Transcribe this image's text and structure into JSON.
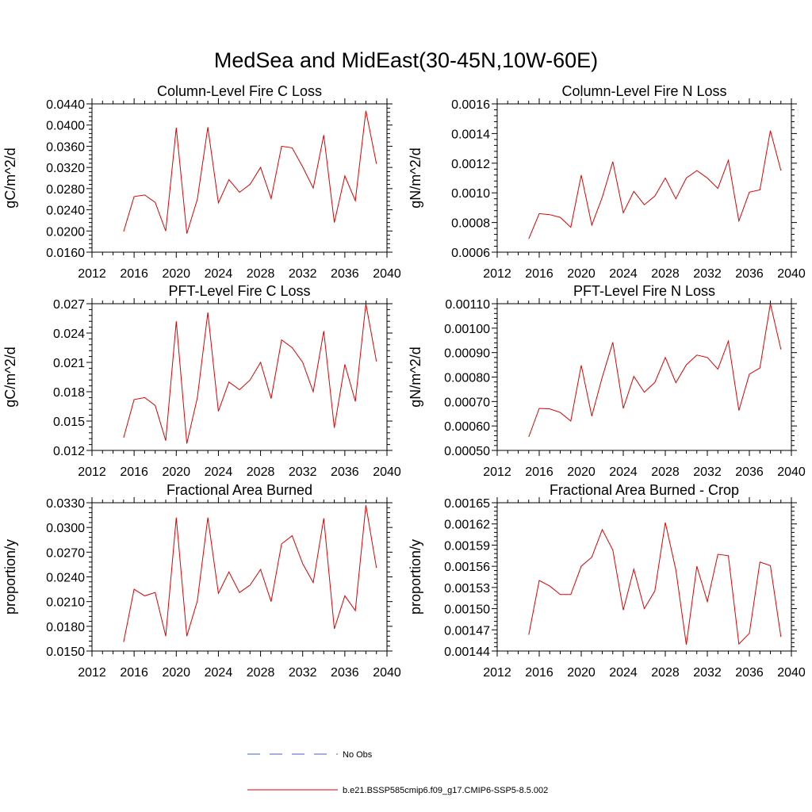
{
  "figure": {
    "title": "MedSea and MidEast(30-45N,10W-60E)"
  },
  "legend": {
    "placement": "bottom-center",
    "entries": [
      {
        "label": "No Obs",
        "color": "#4a5fc4",
        "style": "dashed"
      },
      {
        "label": "b.e21.BSSP585cmip6.f09_g17.CMIP6-SSP5-8.5.002",
        "color": "#e00000",
        "style": "solid"
      }
    ]
  },
  "chart_data": [
    {
      "type": "line",
      "title": "Column-Level Fire C Loss",
      "ylabel": "gC/m^2/d",
      "xlabel": "",
      "xlim": [
        2012,
        2040
      ],
      "xticks": [
        "2012",
        "2016",
        "2020",
        "2024",
        "2028",
        "2032",
        "2036",
        "2040"
      ],
      "ylim": [
        0.016,
        0.044
      ],
      "yticks": [
        "0.0160",
        "0.0200",
        "0.0240",
        "0.0280",
        "0.0320",
        "0.0360",
        "0.0400",
        "0.0440"
      ],
      "x": [
        2015,
        2016,
        2017,
        2018,
        2019,
        2020,
        2021,
        2022,
        2023,
        2024,
        2025,
        2026,
        2027,
        2028,
        2029,
        2030,
        2031,
        2032,
        2033,
        2034,
        2035,
        2036,
        2037,
        2038,
        2039
      ],
      "series": [
        {
          "color": "#e00000",
          "values": [
            0.0199,
            0.0265,
            0.0268,
            0.0254,
            0.02,
            0.0395,
            0.0195,
            0.026,
            0.0396,
            0.0253,
            0.0297,
            0.0273,
            0.0288,
            0.032,
            0.0261,
            0.036,
            0.0357,
            0.0321,
            0.0281,
            0.0381,
            0.0216,
            0.0304,
            0.0257,
            0.0427,
            0.0327
          ]
        }
      ]
    },
    {
      "type": "line",
      "title": "Column-Level Fire N Loss",
      "ylabel": "gN/m^2/d",
      "xlabel": "",
      "xlim": [
        2012,
        2040
      ],
      "xticks": [
        "2012",
        "2016",
        "2020",
        "2024",
        "2028",
        "2032",
        "2036",
        "2040"
      ],
      "ylim": [
        0.0006,
        0.0016
      ],
      "yticks": [
        "0.0006",
        "0.0008",
        "0.0010",
        "0.0012",
        "0.0014",
        "0.0016"
      ],
      "x": [
        2015,
        2016,
        2017,
        2018,
        2019,
        2020,
        2021,
        2022,
        2023,
        2024,
        2025,
        2026,
        2027,
        2028,
        2029,
        2030,
        2031,
        2032,
        2033,
        2034,
        2035,
        2036,
        2037,
        2038,
        2039
      ],
      "series": [
        {
          "color": "#e00000",
          "values": [
            0.00069,
            0.00086,
            0.000853,
            0.000835,
            0.000768,
            0.00112,
            0.000783,
            0.00097,
            0.00121,
            0.000865,
            0.00101,
            0.00092,
            0.000978,
            0.0011,
            0.00096,
            0.0011,
            0.00115,
            0.0011,
            0.00103,
            0.00122,
            0.00081,
            0.001005,
            0.00102,
            0.00142,
            0.00115
          ]
        }
      ]
    },
    {
      "type": "line",
      "title": "PFT-Level Fire C Loss",
      "ylabel": "gC/m^2/d",
      "xlabel": "",
      "xlim": [
        2012,
        2040
      ],
      "xticks": [
        "2012",
        "2016",
        "2020",
        "2024",
        "2028",
        "2032",
        "2036",
        "2040"
      ],
      "ylim": [
        0.012,
        0.027
      ],
      "yticks": [
        "0.012",
        "0.015",
        "0.018",
        "0.021",
        "0.024",
        "0.027"
      ],
      "x": [
        2015,
        2016,
        2017,
        2018,
        2019,
        2020,
        2021,
        2022,
        2023,
        2024,
        2025,
        2026,
        2027,
        2028,
        2029,
        2030,
        2031,
        2032,
        2033,
        2034,
        2035,
        2036,
        2037,
        2038,
        2039
      ],
      "series": [
        {
          "color": "#e00000",
          "values": [
            0.0133,
            0.0172,
            0.0174,
            0.0166,
            0.013,
            0.0252,
            0.0127,
            0.0174,
            0.0261,
            0.016,
            0.019,
            0.0182,
            0.0192,
            0.021,
            0.0173,
            0.0233,
            0.0225,
            0.021,
            0.018,
            0.0242,
            0.0143,
            0.0208,
            0.017,
            0.027,
            0.0211
          ]
        }
      ]
    },
    {
      "type": "line",
      "title": "PFT-Level Fire N Loss",
      "ylabel": "gN/m^2/d",
      "xlabel": "",
      "xlim": [
        2012,
        2040
      ],
      "xticks": [
        "2012",
        "2016",
        "2020",
        "2024",
        "2028",
        "2032",
        "2036",
        "2040"
      ],
      "ylim": [
        0.0005,
        0.0011
      ],
      "yticks": [
        "0.00050",
        "0.00060",
        "0.00070",
        "0.00080",
        "0.00090",
        "0.00100",
        "0.00110"
      ],
      "x": [
        2015,
        2016,
        2017,
        2018,
        2019,
        2020,
        2021,
        2022,
        2023,
        2024,
        2025,
        2026,
        2027,
        2028,
        2029,
        2030,
        2031,
        2032,
        2033,
        2034,
        2035,
        2036,
        2037,
        2038,
        2039
      ],
      "series": [
        {
          "color": "#e00000",
          "values": [
            0.000555,
            0.000672,
            0.00067,
            0.000655,
            0.00062,
            0.000848,
            0.00064,
            0.0008,
            0.000942,
            0.000672,
            0.000803,
            0.000738,
            0.000778,
            0.00088,
            0.000777,
            0.00085,
            0.00089,
            0.00088,
            0.000832,
            0.000947,
            0.000663,
            0.000812,
            0.000837,
            0.0011,
            0.000913
          ]
        }
      ]
    },
    {
      "type": "line",
      "title": "Fractional Area Burned",
      "ylabel": "proportion/y",
      "xlabel": "",
      "xlim": [
        2012,
        2040
      ],
      "xticks": [
        "2012",
        "2016",
        "2020",
        "2024",
        "2028",
        "2032",
        "2036",
        "2040"
      ],
      "ylim": [
        0.015,
        0.033
      ],
      "yticks": [
        "0.0150",
        "0.0180",
        "0.0210",
        "0.0240",
        "0.0270",
        "0.0300",
        "0.0330"
      ],
      "x": [
        2015,
        2016,
        2017,
        2018,
        2019,
        2020,
        2021,
        2022,
        2023,
        2024,
        2025,
        2026,
        2027,
        2028,
        2029,
        2030,
        2031,
        2032,
        2033,
        2034,
        2035,
        2036,
        2037,
        2038,
        2039
      ],
      "series": [
        {
          "color": "#e00000",
          "values": [
            0.0161,
            0.0225,
            0.0217,
            0.0221,
            0.0168,
            0.0312,
            0.0168,
            0.0211,
            0.0312,
            0.022,
            0.0246,
            0.0221,
            0.023,
            0.0249,
            0.021,
            0.028,
            0.029,
            0.0256,
            0.0233,
            0.0311,
            0.0177,
            0.0217,
            0.0199,
            0.0327,
            0.0251
          ]
        }
      ]
    },
    {
      "type": "line",
      "title": "Fractional Area Burned - Crop",
      "ylabel": "proportion/y",
      "xlabel": "",
      "xlim": [
        2012,
        2040
      ],
      "xticks": [
        "2012",
        "2016",
        "2020",
        "2024",
        "2028",
        "2032",
        "2036",
        "2040"
      ],
      "ylim": [
        0.00144,
        0.00165
      ],
      "yticks": [
        "0.00144",
        "0.00147",
        "0.00150",
        "0.00153",
        "0.00156",
        "0.00159",
        "0.00162",
        "0.00165"
      ],
      "x": [
        2015,
        2016,
        2017,
        2018,
        2019,
        2020,
        2021,
        2022,
        2023,
        2024,
        2025,
        2026,
        2027,
        2028,
        2029,
        2030,
        2031,
        2032,
        2033,
        2034,
        2035,
        2036,
        2037,
        2038,
        2039
      ],
      "series": [
        {
          "color": "#e00000",
          "values": [
            0.001463,
            0.00154,
            0.001532,
            0.00152,
            0.00152,
            0.00156,
            0.001573,
            0.001612,
            0.001583,
            0.001498,
            0.001556,
            0.0015,
            0.001525,
            0.001622,
            0.001555,
            0.001449,
            0.00156,
            0.00151,
            0.001577,
            0.001575,
            0.00145,
            0.001465,
            0.001566,
            0.001561,
            0.00146
          ]
        }
      ]
    }
  ]
}
